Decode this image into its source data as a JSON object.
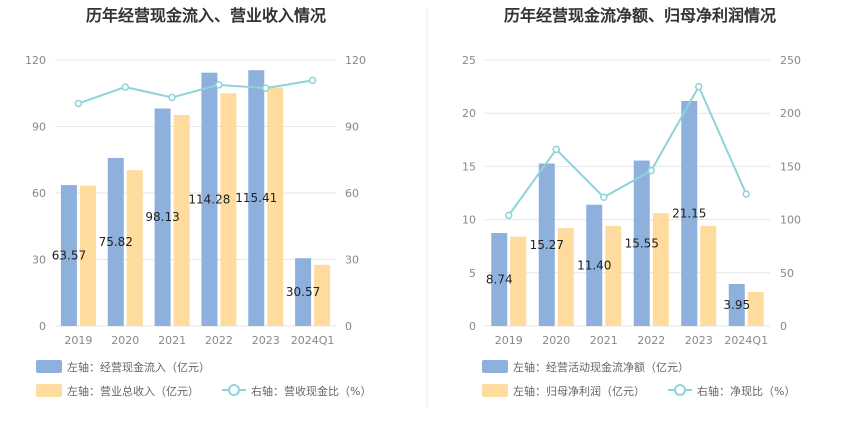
{
  "colors": {
    "bar1": "#8eb0dd",
    "bar2": "#ffdb9e",
    "line": "#8fd3da"
  },
  "chart_data": [
    {
      "type": "bar",
      "title": "历年经营现金流入、营业收入情况",
      "categories": [
        "2019",
        "2020",
        "2021",
        "2022",
        "2023",
        "2024Q1"
      ],
      "y_left_ticks": [
        "0",
        "30",
        "60",
        "90",
        "120"
      ],
      "y_right_ticks": [
        "0",
        "30",
        "60",
        "90",
        "120"
      ],
      "ylim_left": [
        0,
        120
      ],
      "ylim_right": [
        0,
        120
      ],
      "series": [
        {
          "name": "左轴：经营现金流入（亿元）",
          "kind": "bar",
          "axis": "left",
          "values": [
            63.57,
            75.82,
            98.13,
            114.28,
            115.41,
            30.57
          ],
          "labels": [
            "63.57",
            "75.82",
            "98.13",
            "114.28",
            "115.41",
            "30.57"
          ]
        },
        {
          "name": "左轴：营业总收入（亿元）",
          "kind": "bar",
          "axis": "left",
          "values": [
            63.3,
            70.3,
            95.2,
            105.0,
            107.6,
            27.6
          ]
        },
        {
          "name": "右轴：营收现金比（%）",
          "kind": "line",
          "axis": "right",
          "values": [
            100.4,
            107.8,
            103.1,
            108.8,
            107.3,
            110.8
          ]
        }
      ],
      "legend_position": "bottom-left",
      "grid": true
    },
    {
      "type": "bar",
      "title": "历年经营现金流净额、归母净利润情况",
      "categories": [
        "2019",
        "2020",
        "2021",
        "2022",
        "2023",
        "2024Q1"
      ],
      "y_left_ticks": [
        "0",
        "5",
        "10",
        "15",
        "20",
        "25"
      ],
      "y_right_ticks": [
        "0",
        "50",
        "100",
        "150",
        "200",
        "250"
      ],
      "ylim_left": [
        0,
        25
      ],
      "ylim_right": [
        0,
        250
      ],
      "series": [
        {
          "name": "左轴：经营活动现金流净额（亿元）",
          "kind": "bar",
          "axis": "left",
          "values": [
            8.74,
            15.27,
            11.4,
            15.55,
            21.15,
            3.95
          ],
          "labels": [
            "8.74",
            "15.27",
            "11.40",
            "15.55",
            "21.15",
            "3.95"
          ]
        },
        {
          "name": "左轴：归母净利润（亿元）",
          "kind": "bar",
          "axis": "left",
          "values": [
            8.4,
            9.2,
            9.4,
            10.6,
            9.4,
            3.2
          ]
        },
        {
          "name": "右轴：净现比（%）",
          "kind": "line",
          "axis": "right",
          "values": [
            104,
            166,
            121,
            146,
            225,
            124
          ]
        }
      ],
      "legend_position": "bottom-left",
      "grid": true
    }
  ]
}
